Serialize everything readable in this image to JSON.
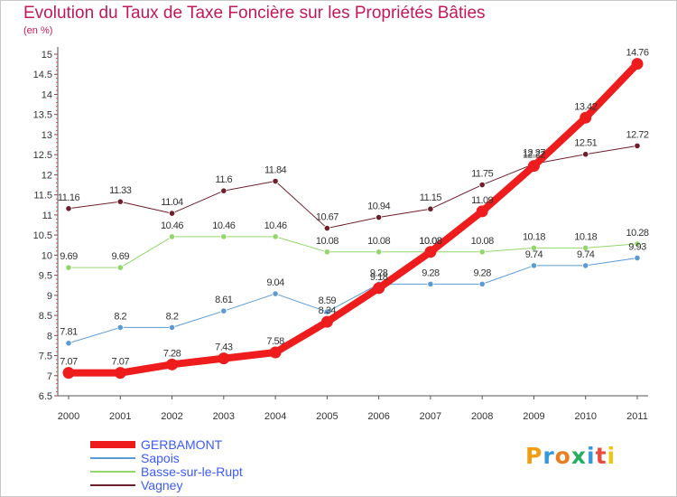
{
  "title": "Evolution du Taux de Taxe Foncière sur les Propriétés Bâties",
  "unit_label": "(en %)",
  "logo": {
    "letters": [
      "P",
      "r",
      "o",
      "x",
      "i",
      "t",
      "i"
    ],
    "colors": [
      "#f39c12",
      "#3498db",
      "#e67e22",
      "#27ae60",
      "#3498db",
      "#e74c3c",
      "#f1c40f"
    ]
  },
  "chart_data": {
    "type": "line",
    "title": "Evolution du Taux de Taxe Foncière sur les Propriétés Bâties",
    "ylabel": "(en %)",
    "x": [
      "2000",
      "2001",
      "2002",
      "2003",
      "2004",
      "2005",
      "2006",
      "2007",
      "2008",
      "2009",
      "2010",
      "2011"
    ],
    "ylim": [
      6.5,
      15
    ],
    "yticks": [
      "6.5",
      "7",
      "7.5",
      "8",
      "8.5",
      "9",
      "9.5",
      "10",
      "10.5",
      "11",
      "11.5",
      "12",
      "12.5",
      "13",
      "13.5",
      "14",
      "14.5",
      "15"
    ],
    "grid": false,
    "legend": "bottom-left",
    "series": [
      {
        "name": "Vagney",
        "color": "#6d1f2a",
        "width": 1,
        "values": [
          11.16,
          11.33,
          11.04,
          11.6,
          11.84,
          10.67,
          10.94,
          11.15,
          11.75,
          12.27,
          12.51,
          12.72
        ],
        "labels": [
          "11.16",
          "11.33",
          "11.04",
          "11.6",
          "11.84",
          "10.67",
          "10.94",
          "11.15",
          "11.75",
          "12.27",
          "12.51",
          "12.72"
        ]
      },
      {
        "name": "Basse-sur-le-Rupt",
        "color": "#93d66c",
        "width": 1,
        "values": [
          9.69,
          9.69,
          10.46,
          10.46,
          10.46,
          10.08,
          10.08,
          10.08,
          10.08,
          10.18,
          10.18,
          10.28
        ],
        "labels": [
          "9.69",
          "9.69",
          "10.46",
          "10.46",
          "10.46",
          "10.08",
          "10.08",
          "10.08",
          "10.08",
          "10.18",
          "10.18",
          "10.28"
        ]
      },
      {
        "name": "Sapois",
        "color": "#5b9bd5",
        "width": 1,
        "values": [
          7.81,
          8.2,
          8.2,
          8.61,
          9.04,
          8.59,
          9.28,
          9.28,
          9.28,
          9.74,
          9.74,
          9.93
        ],
        "labels": [
          "7.81",
          "8.2",
          "8.2",
          "8.61",
          "9.04",
          "8.59",
          "9.28",
          "9.28",
          "9.28",
          "9.74",
          "9.74",
          "9.93"
        ]
      },
      {
        "name": "GERBAMONT",
        "color": "#ee1c1c",
        "width": 8,
        "values": [
          7.07,
          7.07,
          7.28,
          7.43,
          7.58,
          8.34,
          9.18,
          10.08,
          11.09,
          12.22,
          13.42,
          14.76
        ],
        "labels": [
          "7.07",
          "7.07",
          "7.28",
          "7.43",
          "7.58",
          "8.34",
          "9.18",
          "10.08",
          "11.09",
          "12.22",
          "13.42",
          "14.76"
        ]
      }
    ],
    "legend_order": [
      "GERBAMONT",
      "Sapois",
      "Basse-sur-le-Rupt",
      "Vagney"
    ]
  }
}
